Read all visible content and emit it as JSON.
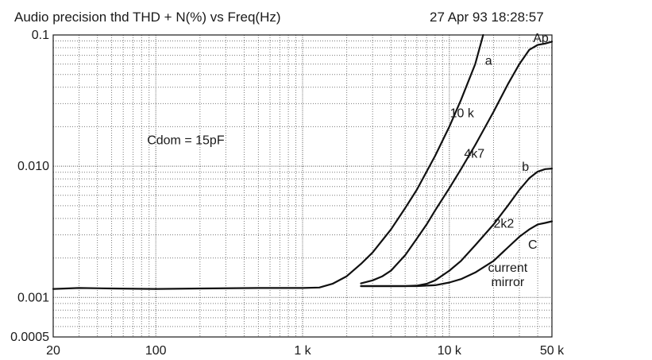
{
  "header": {
    "title": "Audio precision thd THD + N(%) vs Freq(Hz)",
    "timestamp": "27 Apr 93 18:28:57"
  },
  "chart_data": {
    "type": "line",
    "title": "Audio precision thd THD + N(%) vs Freq(Hz)",
    "xscale": "log",
    "yscale": "log",
    "xlim": [
      20,
      50000
    ],
    "ylim": [
      0.0005,
      0.1
    ],
    "grid": true,
    "x_ticks": [
      {
        "value": 20,
        "label": "20"
      },
      {
        "value": 100,
        "label": "100"
      },
      {
        "value": 1000,
        "label": "1 k"
      },
      {
        "value": 10000,
        "label": "10 k"
      },
      {
        "value": 50000,
        "label": "50 k"
      }
    ],
    "y_ticks": [
      {
        "value": 0.1,
        "label": "0.1"
      },
      {
        "value": 0.01,
        "label": "0.010"
      },
      {
        "value": 0.001,
        "label": "0.001"
      },
      {
        "value": 0.0005,
        "label": "0.0005"
      }
    ],
    "annotations": [
      {
        "text": "Cdom = 15pF",
        "x": 160,
        "y": 0.0147
      },
      {
        "text": "Ap",
        "x": 42000,
        "y": 0.088
      },
      {
        "text": "a",
        "x": 18500,
        "y": 0.0593
      },
      {
        "text": "10 k",
        "x": 12200,
        "y": 0.0236
      },
      {
        "text": "4k7",
        "x": 14800,
        "y": 0.0116
      },
      {
        "text": "b",
        "x": 33000,
        "y": 0.0092
      },
      {
        "text": "2k2",
        "x": 23500,
        "y": 0.0034
      },
      {
        "text": "C",
        "x": 37000,
        "y": 0.00235
      },
      {
        "text": "current",
        "x": 25000,
        "y": 0.00157
      },
      {
        "text": "mirror",
        "x": 25000,
        "y": 0.00122
      }
    ],
    "series": [
      {
        "x": [
          20,
          30,
          50,
          100,
          200,
          500,
          1000,
          1300,
          1600,
          2000,
          2500,
          3000,
          4000,
          5000,
          6000,
          8000,
          10000,
          12000,
          15000,
          17000
        ],
        "y": [
          0.00116,
          0.00118,
          0.00117,
          0.00116,
          0.00117,
          0.00118,
          0.00118,
          0.00119,
          0.00127,
          0.00145,
          0.0018,
          0.0022,
          0.0033,
          0.0048,
          0.0066,
          0.012,
          0.02,
          0.032,
          0.06,
          0.1
        ]
      },
      {
        "x": [
          2500,
          3000,
          3500,
          4000,
          5000,
          6000,
          7000,
          8000,
          10000,
          12000,
          15000,
          20000,
          25000,
          30000,
          35000,
          40000,
          45000,
          50000
        ],
        "y": [
          0.00128,
          0.00135,
          0.00145,
          0.0016,
          0.0021,
          0.0028,
          0.0036,
          0.0046,
          0.0068,
          0.0095,
          0.0145,
          0.026,
          0.042,
          0.06,
          0.077,
          0.084,
          0.086,
          0.089
        ]
      },
      {
        "x": [
          2500,
          3000,
          4000,
          5000,
          6000,
          7000,
          8000,
          10000,
          12000,
          15000,
          20000,
          25000,
          30000,
          35000,
          40000,
          45000,
          50000
        ],
        "y": [
          0.00122,
          0.00122,
          0.00122,
          0.00122,
          0.00123,
          0.00127,
          0.00135,
          0.0016,
          0.0019,
          0.0025,
          0.0036,
          0.005,
          0.0066,
          0.0081,
          0.0091,
          0.0095,
          0.0096
        ]
      },
      {
        "x": [
          2500,
          3000,
          4000,
          5000,
          6000,
          8000,
          10000,
          12000,
          15000,
          20000,
          25000,
          30000,
          35000,
          40000,
          45000,
          50000
        ],
        "y": [
          0.00122,
          0.00122,
          0.00122,
          0.00122,
          0.00122,
          0.00124,
          0.0013,
          0.00138,
          0.00155,
          0.0019,
          0.0024,
          0.0029,
          0.0033,
          0.0036,
          0.0037,
          0.0038
        ]
      }
    ]
  }
}
